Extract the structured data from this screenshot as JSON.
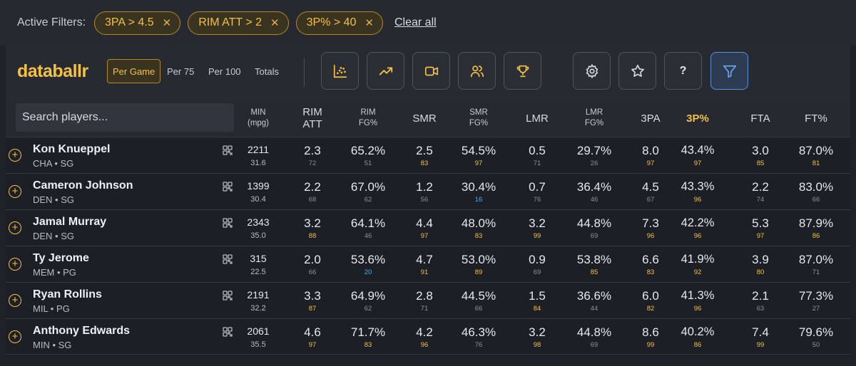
{
  "filters": {
    "label": "Active Filters:",
    "chips": [
      "3PA > 4.5",
      "RIM ATT > 2",
      "3P% > 40"
    ],
    "clear_label": "Clear all"
  },
  "toolbar": {
    "logo": "databallr",
    "modes": [
      "Per Game",
      "Per 75",
      "Per 100",
      "Totals"
    ],
    "active_mode": "Per Game",
    "help_label": "?",
    "icons": [
      "scatter-plot-icon",
      "trend-line-icon",
      "video-icon",
      "users-icon",
      "trophy-icon",
      "gear-icon",
      "star-icon",
      "help-icon",
      "filter-icon"
    ]
  },
  "search": {
    "placeholder": "Search players..."
  },
  "columns": [
    {
      "label": "MIN\n(mpg)",
      "small": true
    },
    {
      "label": "RIM\nATT",
      "small": false
    },
    {
      "label": "RIM\nFG%",
      "small": true
    },
    {
      "label": "SMR",
      "small": false
    },
    {
      "label": "SMR\nFG%",
      "small": true
    },
    {
      "label": "LMR",
      "small": false
    },
    {
      "label": "LMR\nFG%",
      "small": true
    },
    {
      "label": "3PA",
      "small": false
    },
    {
      "label": "3P%",
      "small": false,
      "highlight": true
    },
    {
      "label": "FTA",
      "small": false
    },
    {
      "label": "FT%",
      "small": false
    }
  ],
  "colors": {
    "accent": "#f3c144",
    "rank_high": "#f3c144",
    "rank_mid": "#8c9099",
    "rank_low": "#5aa9e6"
  },
  "players": [
    {
      "name": "Kon Knueppel",
      "meta": "CHA • SG",
      "stats": [
        [
          "2211",
          "31.6"
        ],
        [
          "2.3",
          "72"
        ],
        [
          "65.2%",
          "51"
        ],
        [
          "2.5",
          "83"
        ],
        [
          "54.5%",
          "97"
        ],
        [
          "0.5",
          "71"
        ],
        [
          "29.7%",
          "26"
        ],
        [
          "8.0",
          "97"
        ],
        [
          "43.4%",
          "97"
        ],
        [
          "3.0",
          "85"
        ],
        [
          "87.0%",
          "81"
        ]
      ]
    },
    {
      "name": "Cameron Johnson",
      "meta": "DEN • SG",
      "stats": [
        [
          "1399",
          "30.4"
        ],
        [
          "2.2",
          "68"
        ],
        [
          "67.0%",
          "62"
        ],
        [
          "1.2",
          "56"
        ],
        [
          "30.4%",
          "16"
        ],
        [
          "0.7",
          "76"
        ],
        [
          "36.4%",
          "46"
        ],
        [
          "4.5",
          "67"
        ],
        [
          "43.3%",
          "96"
        ],
        [
          "2.2",
          "74"
        ],
        [
          "83.0%",
          "66"
        ]
      ]
    },
    {
      "name": "Jamal Murray",
      "meta": "DEN • SG",
      "stats": [
        [
          "2343",
          "35.0"
        ],
        [
          "3.2",
          "88"
        ],
        [
          "64.1%",
          "46"
        ],
        [
          "4.4",
          "97"
        ],
        [
          "48.0%",
          "83"
        ],
        [
          "3.2",
          "99"
        ],
        [
          "44.8%",
          "69"
        ],
        [
          "7.3",
          "96"
        ],
        [
          "42.2%",
          "96"
        ],
        [
          "5.3",
          "97"
        ],
        [
          "87.9%",
          "86"
        ]
      ]
    },
    {
      "name": "Ty Jerome",
      "meta": "MEM • PG",
      "stats": [
        [
          "315",
          "22.5"
        ],
        [
          "2.0",
          "66"
        ],
        [
          "53.6%",
          "20"
        ],
        [
          "4.7",
          "91"
        ],
        [
          "53.0%",
          "89"
        ],
        [
          "0.9",
          "69"
        ],
        [
          "53.8%",
          "85"
        ],
        [
          "6.6",
          "83"
        ],
        [
          "41.9%",
          "92"
        ],
        [
          "3.9",
          "80"
        ],
        [
          "87.0%",
          "71"
        ]
      ]
    },
    {
      "name": "Ryan Rollins",
      "meta": "MIL • PG",
      "stats": [
        [
          "2191",
          "32.2"
        ],
        [
          "3.3",
          "87"
        ],
        [
          "64.9%",
          "62"
        ],
        [
          "2.8",
          "71"
        ],
        [
          "44.5%",
          "66"
        ],
        [
          "1.5",
          "84"
        ],
        [
          "36.6%",
          "44"
        ],
        [
          "6.0",
          "82"
        ],
        [
          "41.3%",
          "96"
        ],
        [
          "2.1",
          "63"
        ],
        [
          "77.3%",
          "27"
        ]
      ]
    },
    {
      "name": "Anthony Edwards",
      "meta": "MIN • SG",
      "stats": [
        [
          "2061",
          "35.5"
        ],
        [
          "4.6",
          "97"
        ],
        [
          "71.7%",
          "83"
        ],
        [
          "4.2",
          "96"
        ],
        [
          "46.3%",
          "76"
        ],
        [
          "3.2",
          "98"
        ],
        [
          "44.8%",
          "69"
        ],
        [
          "8.6",
          "99"
        ],
        [
          "40.2%",
          "86"
        ],
        [
          "7.4",
          "99"
        ],
        [
          "79.6%",
          "50"
        ]
      ]
    }
  ]
}
